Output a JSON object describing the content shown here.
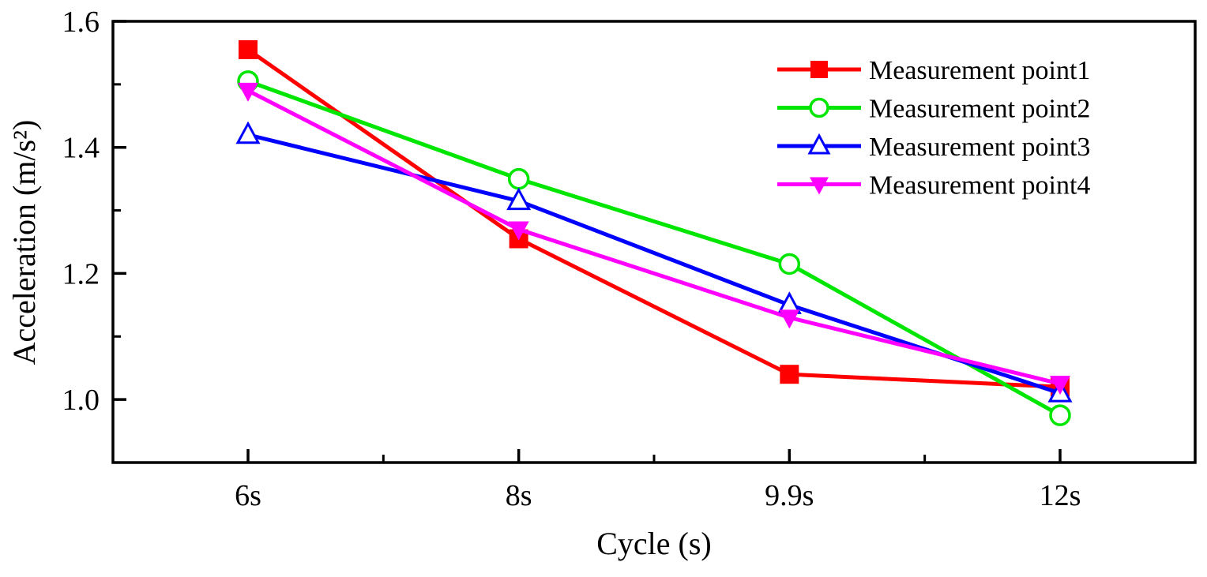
{
  "chart_data": {
    "type": "line",
    "title": "",
    "categories": [
      "6s",
      "8s",
      "9.9s",
      "12s"
    ],
    "series": [
      {
        "name": "Measurement point1",
        "color": "#ff0000",
        "marker": "square-filled",
        "values": [
          1.555,
          1.255,
          1.04,
          1.02
        ]
      },
      {
        "name": "Measurement point2",
        "color": "#00e600",
        "marker": "circle-open",
        "values": [
          1.505,
          1.35,
          1.215,
          0.975
        ]
      },
      {
        "name": "Measurement point3",
        "color": "#0000ff",
        "marker": "triangle-up-open",
        "values": [
          1.42,
          1.315,
          1.15,
          1.01
        ]
      },
      {
        "name": "Measurement point4",
        "color": "#ff00ff",
        "marker": "triangle-down-filled",
        "values": [
          1.49,
          1.27,
          1.13,
          1.025
        ]
      }
    ],
    "xlabel": "Cycle (s)",
    "ylabel": "Acceleration (m/s²)",
    "ylim": [
      0.9,
      1.6
    ],
    "yticks_major": [
      1.0,
      1.2,
      1.4,
      1.6
    ],
    "ytick_labels": [
      "1.0",
      "1.2",
      "1.4",
      "1.6"
    ],
    "yticks_minor": [
      1.1,
      1.3,
      1.5
    ],
    "grid": false,
    "legend_position": "top-right"
  },
  "colors": {
    "axis": "#000000",
    "text": "#000000",
    "background": "#ffffff",
    "open_marker_fill": "#ffffff"
  }
}
